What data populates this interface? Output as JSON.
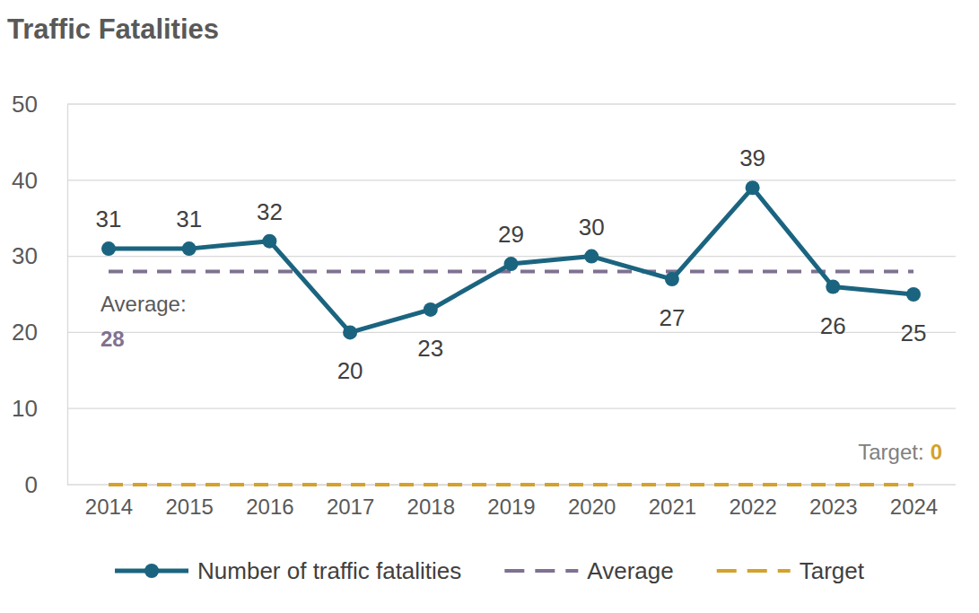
{
  "chart_data": {
    "type": "line",
    "title": "Traffic Fatalities",
    "categories": [
      "2014",
      "2015",
      "2016",
      "2017",
      "2018",
      "2019",
      "2020",
      "2021",
      "2022",
      "2023",
      "2024"
    ],
    "series": [
      {
        "name": "Number of traffic fatalities",
        "color": "#1b6480",
        "values": [
          31,
          31,
          32,
          20,
          23,
          29,
          30,
          27,
          39,
          26,
          25
        ],
        "marker": "circle",
        "line_style": "solid",
        "data_labels": true
      },
      {
        "name": "Average",
        "color": "#7f7191",
        "values": [
          28,
          28,
          28,
          28,
          28,
          28,
          28,
          28,
          28,
          28,
          28
        ],
        "line_style": "dashed"
      },
      {
        "name": "Target",
        "color": "#d4a22b",
        "values": [
          0,
          0,
          0,
          0,
          0,
          0,
          0,
          0,
          0,
          0,
          0
        ],
        "line_style": "dashed"
      }
    ],
    "annotations": [
      {
        "text": "Average:",
        "value": 28
      },
      {
        "text": "Target:",
        "value": 0
      }
    ],
    "ylim": [
      0,
      50
    ],
    "yticks": [
      0,
      10,
      20,
      30,
      40,
      50
    ],
    "grid": true
  }
}
